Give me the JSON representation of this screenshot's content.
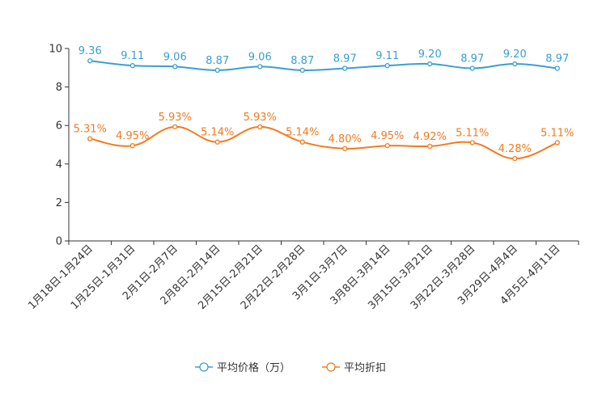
{
  "chart_data": {
    "type": "line",
    "categories": [
      "1月18日-1月24日",
      "1月25日-1月31日",
      "2月1日-2月7日",
      "2月8日-2月14日",
      "2月15日-2月21日",
      "2月22日-2月28日",
      "3月1日-3月7日",
      "3月8日-3月14日",
      "3月15日-3月21日",
      "3月22日-3月28日",
      "3月29日-4月4日",
      "4月5日-4月11日"
    ],
    "series": [
      {
        "name": "平均价格（万）",
        "color": "#3a9fd1",
        "values": [
          9.36,
          9.11,
          9.06,
          8.87,
          9.06,
          8.87,
          8.97,
          9.11,
          9.2,
          8.97,
          9.2,
          8.97
        ],
        "labels": [
          "9.36",
          "9.11",
          "9.06",
          "8.87",
          "9.06",
          "8.87",
          "8.97",
          "9.11",
          "9.20",
          "8.97",
          "9.20",
          "8.97"
        ]
      },
      {
        "name": "平均折扣",
        "color": "#f47a20",
        "values": [
          5.31,
          4.95,
          5.93,
          5.14,
          5.93,
          5.14,
          4.8,
          4.95,
          4.92,
          5.11,
          4.28,
          5.11
        ],
        "labels": [
          "5.31%",
          "4.95%",
          "5.93%",
          "5.14%",
          "5.93%",
          "5.14%",
          "4.80%",
          "4.95%",
          "4.92%",
          "5.11%",
          "4.28%",
          "5.11%"
        ]
      }
    ],
    "yticks": [
      "0",
      "2",
      "4",
      "6",
      "8",
      "10"
    ],
    "ylim": [
      0,
      10
    ],
    "legend": "bottom-center"
  }
}
